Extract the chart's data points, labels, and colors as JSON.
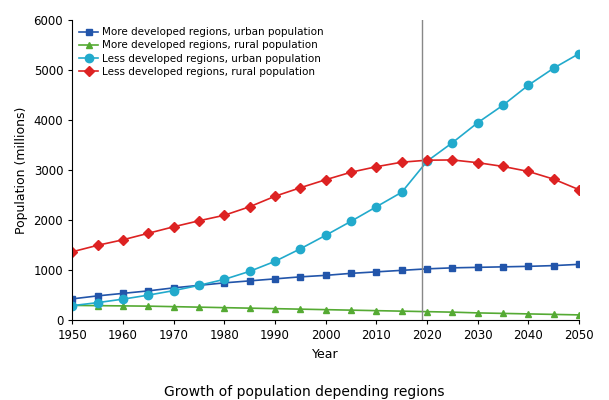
{
  "years": [
    1950,
    1955,
    1960,
    1965,
    1970,
    1975,
    1980,
    1985,
    1990,
    1995,
    2000,
    2005,
    2010,
    2015,
    2020,
    2025,
    2030,
    2035,
    2040,
    2045,
    2050
  ],
  "more_dev_urban": [
    430,
    490,
    540,
    590,
    650,
    700,
    750,
    790,
    830,
    870,
    900,
    940,
    970,
    1000,
    1030,
    1050,
    1060,
    1070,
    1080,
    1095,
    1120
  ],
  "more_dev_rural": [
    300,
    295,
    290,
    285,
    275,
    265,
    255,
    245,
    235,
    225,
    215,
    205,
    195,
    185,
    175,
    165,
    150,
    140,
    130,
    120,
    110
  ],
  "less_dev_urban": [
    295,
    355,
    425,
    505,
    595,
    700,
    820,
    980,
    1180,
    1430,
    1700,
    1980,
    2270,
    2560,
    3180,
    3550,
    3950,
    4300,
    4700,
    5040,
    5330
  ],
  "less_dev_rural": [
    1370,
    1500,
    1610,
    1740,
    1870,
    1990,
    2100,
    2270,
    2480,
    2650,
    2810,
    2960,
    3070,
    3160,
    3200,
    3205,
    3150,
    3075,
    2975,
    2820,
    2610
  ],
  "vline_x": 2019,
  "ylim": [
    0,
    6000
  ],
  "xlim": [
    1950,
    2050
  ],
  "yticks": [
    0,
    1000,
    2000,
    3000,
    4000,
    5000,
    6000
  ],
  "xticks": [
    1950,
    1960,
    1970,
    1980,
    1990,
    2000,
    2010,
    2020,
    2030,
    2040,
    2050
  ],
  "xlabel": "Year",
  "ylabel": "Population (millions)",
  "title": "Growth of population depending regions",
  "legend_labels": [
    "More developed regions, urban population",
    "More developed regions, rural population",
    "Less developed regions, urban population",
    "Less developed regions, rural population"
  ],
  "colors": {
    "more_dev_urban": "#2255aa",
    "more_dev_rural": "#55aa33",
    "less_dev_urban": "#22aacc",
    "less_dev_rural": "#dd2222"
  },
  "vline_color": "#888888",
  "bg_color": "#ffffff"
}
